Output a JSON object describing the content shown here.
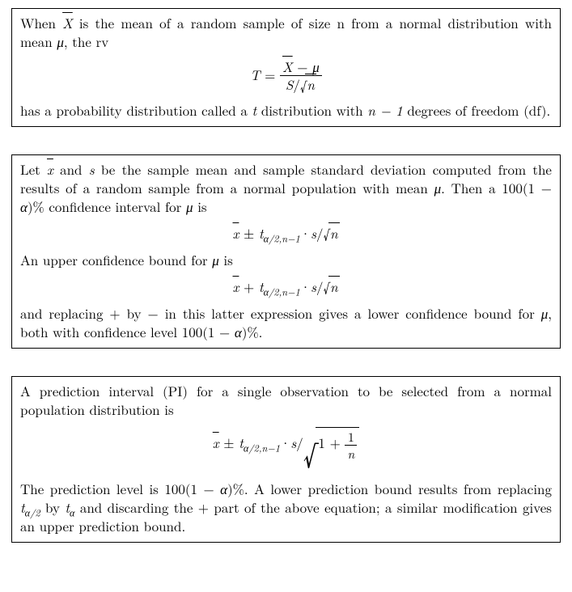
{
  "box1": {
    "p1_a": "When ",
    "p1_b": " is the mean of a random sample of size n from a normal distribution with mean ",
    "p1_c": ", the rv",
    "formula_lhs": "T",
    "formula_num_a": " − ",
    "formula_den_a": "S",
    "formula_den_b": "/",
    "p2_a": "has a probability distribution called a ",
    "p2_b": " distribution with ",
    "p2_c": " degrees of freedom (df)."
  },
  "box2": {
    "p1_a": "Let ",
    "p1_b": " and ",
    "p1_c": " be the sample mean and sample standard deviation computed from the results of a random sample from a normal population with mean ",
    "p1_d": ".  Then a 100(1 − ",
    "p1_e": ")% confidence interval for ",
    "p1_f": " is",
    "f1_pm": " ± ",
    "f1_sub": "α/2,n−1",
    "f1_dot": "·",
    "f1_s": "s",
    "f1_slash": "/",
    "p2_a": "An upper confidence bound for ",
    "p2_b": " is",
    "f2_plus": " + ",
    "p3_a": "and replacing + by − in this latter expression gives a lower confidence bound for ",
    "p3_b": ", both with confidence level 100(1 − ",
    "p3_c": ")%."
  },
  "box3": {
    "p1": "A prediction interval (PI) for a single observation to be selected from a normal population distribution is",
    "f_pm": " ± ",
    "f_sub": "α/2,n−1",
    "f_dot": "·",
    "f_s": "s",
    "f_slash": "/",
    "f_one": "1 + ",
    "f_frac_num": "1",
    "p2_a": "The prediction level is 100(1 − ",
    "p2_b": ")%. A lower prediction bound results from replacing ",
    "p2_c": " by ",
    "p2_d": " and discarding the + part of the above equation; a similar modification gives an upper prediction bound."
  },
  "sym": {
    "Xbar": "X",
    "xbar": "x",
    "mu": "μ",
    "alpha": "α",
    "t": "t",
    "s": "s",
    "n": "n",
    "nminus1": "n − 1",
    "t_a2": "α/2",
    "t_a": "α"
  }
}
